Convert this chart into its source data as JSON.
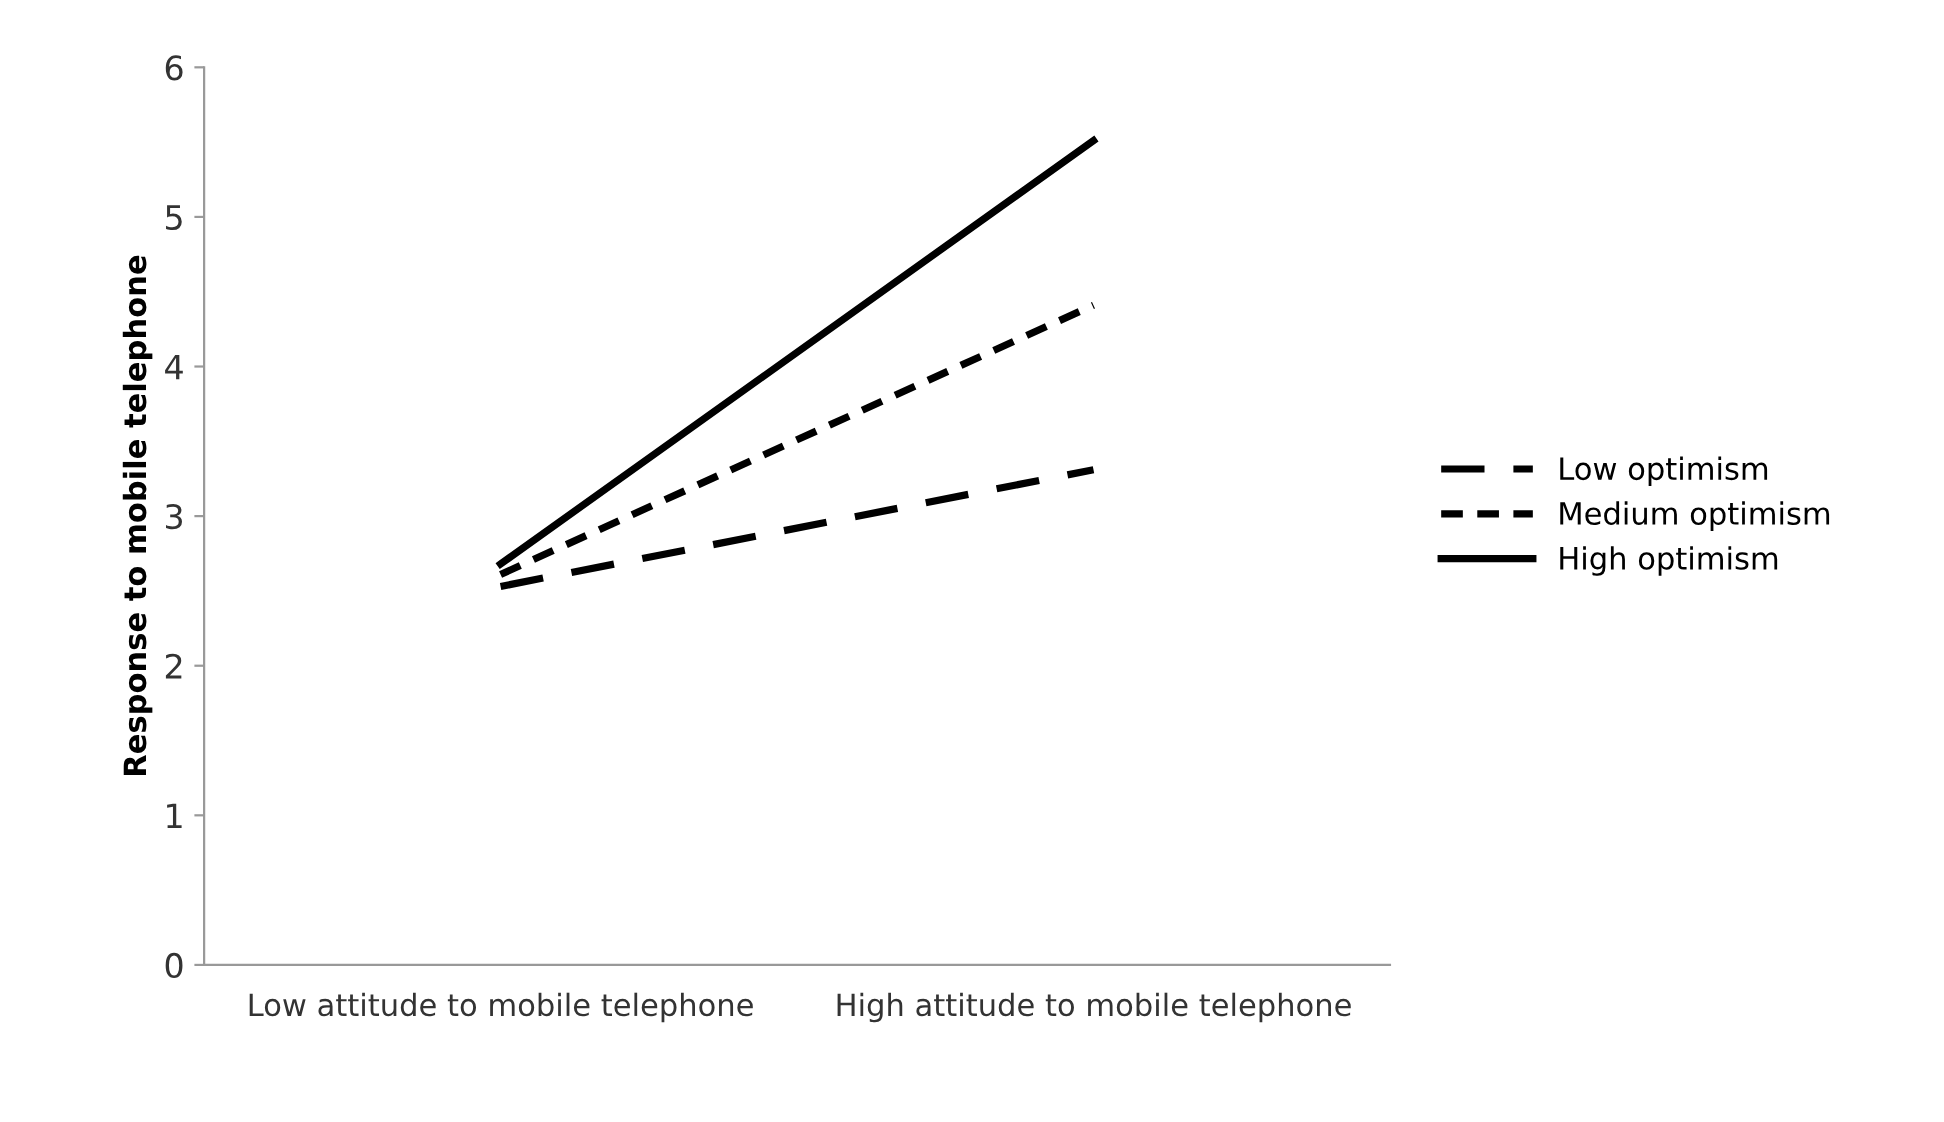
{
  "chart_data": {
    "type": "line",
    "ylabel": "Response to mobile telephone",
    "categories": [
      "Low attitude to mobile telephone",
      "High attitude to mobile telephone"
    ],
    "series": [
      {
        "name": "Low optimism",
        "color": "#000000",
        "line_style": "dashed",
        "values": [
          2.53,
          3.31
        ]
      },
      {
        "name": "Medium optimism",
        "color": "#000000",
        "line_style": "dotted",
        "values": [
          2.61,
          4.41
        ]
      },
      {
        "name": "High optimism",
        "color": "#000000",
        "line_style": "solid",
        "values": [
          2.68,
          5.51
        ]
      }
    ],
    "ylim": [
      0,
      6
    ],
    "yticks": [
      0,
      1,
      2,
      3,
      4,
      5,
      6
    ],
    "grid": false,
    "legend": "right",
    "marker": "none"
  }
}
